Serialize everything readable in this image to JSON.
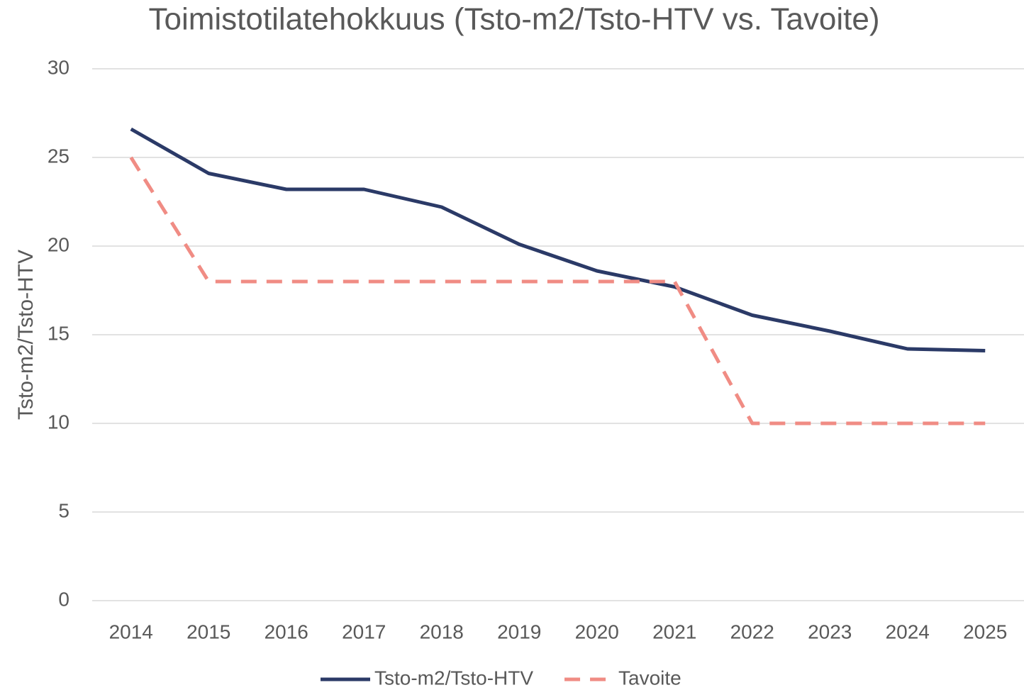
{
  "chart_data": {
    "type": "line",
    "title": "Toimistotilatehokkuus (Tsto-m2/Tsto-HTV vs. Tavoite)",
    "y_label": "Tsto-m2/Tsto-HTV",
    "categories": [
      "2014",
      "2015",
      "2016",
      "2017",
      "2018",
      "2019",
      "2020",
      "2021",
      "2022",
      "2023",
      "2024",
      "2025"
    ],
    "series": [
      {
        "name": "Tsto-m2/Tsto-HTV",
        "color": "#2b3a67",
        "dashed": false,
        "values": [
          26.6,
          24.1,
          23.2,
          23.2,
          22.2,
          20.1,
          18.6,
          17.7,
          16.1,
          15.2,
          14.2,
          14.1
        ]
      },
      {
        "name": "Tavoite",
        "color": "#f08c84",
        "dashed": true,
        "values": [
          25,
          18,
          18,
          18,
          18,
          18,
          18,
          18,
          10,
          10,
          10,
          10
        ]
      }
    ],
    "ylim": [
      0,
      30
    ],
    "yticks": [
      0,
      5,
      10,
      15,
      20,
      25,
      30
    ],
    "grid": true,
    "legend": "bottom"
  }
}
